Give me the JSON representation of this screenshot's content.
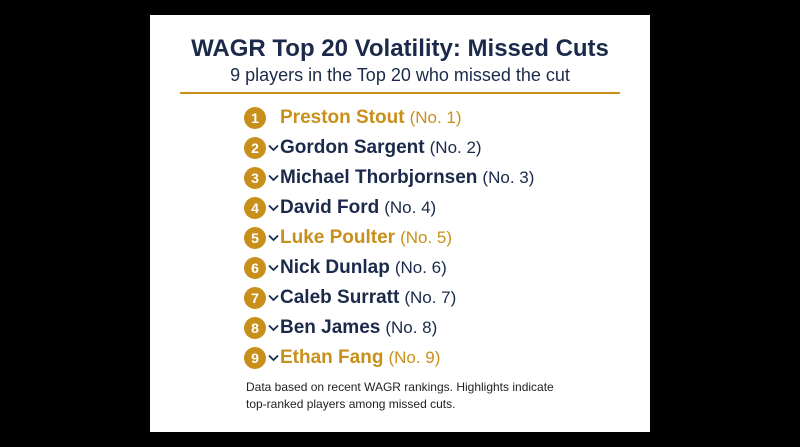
{
  "header": {
    "title": "WAGR Top 20 Volatility: Missed Cuts",
    "subtitle": "9 players in the Top 20 who missed the cut"
  },
  "list": [
    {
      "badge": 1,
      "name": "Preston Stout",
      "rank": "(No. 1)",
      "highlight": true,
      "chevron": false
    },
    {
      "badge": 2,
      "name": "Gordon Sargent",
      "rank": "(No. 2)",
      "highlight": false,
      "chevron": true
    },
    {
      "badge": 3,
      "name": "Michael Thorbjornsen",
      "rank": "(No. 3)",
      "highlight": false,
      "chevron": true
    },
    {
      "badge": 4,
      "name": "David Ford",
      "rank": "(No. 4)",
      "highlight": false,
      "chevron": true
    },
    {
      "badge": 5,
      "name": "Luke Poulter",
      "rank": "(No. 5)",
      "highlight": true,
      "chevron": true
    },
    {
      "badge": 6,
      "name": "Nick Dunlap",
      "rank": "(No. 6)",
      "highlight": false,
      "chevron": true
    },
    {
      "badge": 7,
      "name": "Caleb Surratt",
      "rank": "(No. 7)",
      "highlight": false,
      "chevron": true
    },
    {
      "badge": 8,
      "name": "Ben James",
      "rank": "(No. 8)",
      "highlight": false,
      "chevron": true
    },
    {
      "badge": 9,
      "name": "Ethan Fang",
      "rank": "(No. 9)",
      "highlight": true,
      "chevron": true
    }
  ],
  "footer": {
    "lines": [
      "Data based on recent WAGR rankings. Highlights indicate",
      "top-ranked players among missed cuts."
    ]
  }
}
